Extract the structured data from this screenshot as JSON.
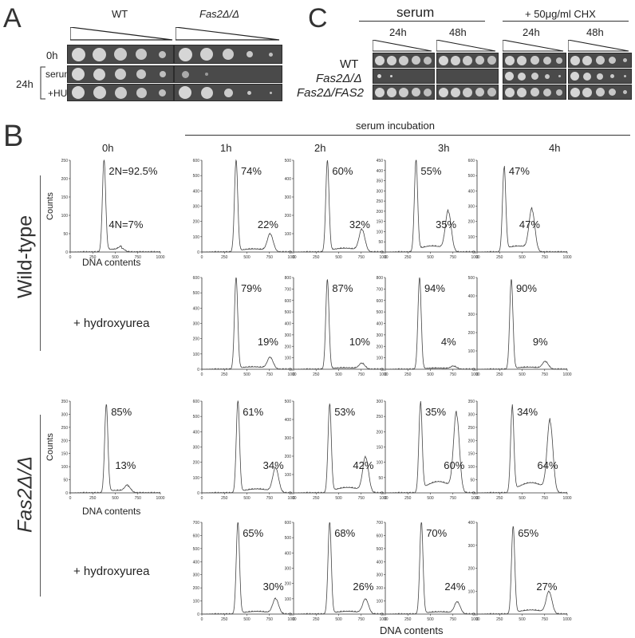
{
  "panelA": {
    "letter": "A",
    "header_wt": "WT",
    "header_mut": "Fas2Δ/Δ",
    "row_0h": "0h",
    "row_24h": "24h",
    "row_serum": "serum",
    "row_hu": "+HU"
  },
  "panelC": {
    "letter": "C",
    "header_serum": "serum",
    "header_chx": "+ 50μg/ml CHX",
    "time_24h_a": "24h",
    "time_48h_a": "48h",
    "time_24h_b": "24h",
    "time_48h_b": "48h",
    "strain_wt": "WT",
    "strain_mut": "Fas2Δ/Δ",
    "strain_rev": "Fas2Δ/FAS2"
  },
  "panelB": {
    "letter": "B",
    "serum_incubation": "serum incubation",
    "time_0h": "0h",
    "time_1h": "1h",
    "time_2h": "2h",
    "time_3h": "3h",
    "time_4h": "4h",
    "row_wt": "Wild-type",
    "row_mut": "Fas2Δ/Δ",
    "hu_label_1": "+ hydroxyurea",
    "hu_label_2": "+ hydroxyurea",
    "ylabel": "Counts",
    "xlabel_0h": "DNA contents",
    "xlabel_bottom": "DNA contents"
  },
  "chart_data": [
    {
      "type": "line",
      "id": "wt-0h",
      "xlim": [
        0,
        1000
      ],
      "ylim": [
        0,
        250
      ],
      "yticks": [
        0,
        50,
        100,
        150,
        200,
        250
      ],
      "xticks": [
        0,
        250,
        500,
        750,
        1000
      ],
      "peaks": [
        {
          "x": 375,
          "height": 250
        },
        {
          "x": 570,
          "height": 10
        }
      ],
      "labels": [
        "2N=92.5%",
        "4N=7%"
      ]
    },
    {
      "type": "line",
      "id": "wt-1h",
      "xlim": [
        0,
        1000
      ],
      "ylim": [
        0,
        600
      ],
      "yticks": [
        0,
        100,
        200,
        300,
        400,
        500,
        600
      ],
      "xticks": [
        0,
        250,
        500,
        750,
        1000
      ],
      "peaks": [
        {
          "x": 380,
          "height": 600
        },
        {
          "x": 760,
          "height": 115
        }
      ],
      "labels": [
        "74%",
        "22%"
      ]
    },
    {
      "type": "line",
      "id": "wt-2h",
      "xlim": [
        0,
        1000
      ],
      "ylim": [
        0,
        500
      ],
      "yticks": [
        0,
        100,
        200,
        300,
        400,
        500
      ],
      "xticks": [
        0,
        250,
        500,
        750,
        1000
      ],
      "peaks": [
        {
          "x": 375,
          "height": 495
        },
        {
          "x": 760,
          "height": 120
        }
      ],
      "labels": [
        "60%",
        "32%"
      ]
    },
    {
      "type": "line",
      "id": "wt-3h",
      "xlim": [
        0,
        1000
      ],
      "ylim": [
        0,
        450
      ],
      "yticks": [
        0,
        50,
        100,
        150,
        200,
        250,
        300,
        350,
        400,
        450
      ],
      "xticks": [
        0,
        250,
        500,
        750,
        1000
      ],
      "peaks": [
        {
          "x": 340,
          "height": 450
        },
        {
          "x": 700,
          "height": 195
        }
      ],
      "labels": [
        "55%",
        "35%"
      ]
    },
    {
      "type": "line",
      "id": "wt-4h",
      "xlim": [
        0,
        1000
      ],
      "ylim": [
        0,
        600
      ],
      "yticks": [
        0,
        100,
        200,
        300,
        400,
        500,
        600
      ],
      "xticks": [
        0,
        250,
        500,
        750,
        1000
      ],
      "peaks": [
        {
          "x": 300,
          "height": 550
        },
        {
          "x": 610,
          "height": 270
        }
      ],
      "labels": [
        "47%",
        "47%"
      ]
    },
    {
      "type": "line",
      "id": "wthu-1h",
      "xlim": [
        0,
        1000
      ],
      "ylim": [
        0,
        600
      ],
      "yticks": [
        0,
        100,
        200,
        300,
        400,
        500,
        600
      ],
      "xticks": [
        0,
        250,
        500,
        750,
        1000
      ],
      "peaks": [
        {
          "x": 380,
          "height": 600
        },
        {
          "x": 760,
          "height": 75
        }
      ],
      "labels": [
        "79%",
        "19%"
      ]
    },
    {
      "type": "line",
      "id": "wthu-2h",
      "xlim": [
        0,
        1000
      ],
      "ylim": [
        0,
        800
      ],
      "yticks": [
        0,
        100,
        200,
        300,
        400,
        500,
        600,
        700,
        800
      ],
      "xticks": [
        0,
        250,
        500,
        750,
        1000
      ],
      "peaks": [
        {
          "x": 375,
          "height": 780
        },
        {
          "x": 760,
          "height": 50
        }
      ],
      "labels": [
        "87%",
        "10%"
      ]
    },
    {
      "type": "line",
      "id": "wthu-3h",
      "xlim": [
        0,
        1000
      ],
      "ylim": [
        0,
        800
      ],
      "yticks": [
        0,
        100,
        200,
        300,
        400,
        500,
        600,
        700,
        800
      ],
      "xticks": [
        0,
        250,
        500,
        750,
        1000
      ],
      "peaks": [
        {
          "x": 380,
          "height": 800
        },
        {
          "x": 760,
          "height": 25
        }
      ],
      "labels": [
        "94%",
        "4%"
      ]
    },
    {
      "type": "line",
      "id": "wthu-4h",
      "xlim": [
        0,
        1000
      ],
      "ylim": [
        0,
        500
      ],
      "yticks": [
        0,
        100,
        200,
        300,
        400,
        500
      ],
      "xticks": [
        0,
        250,
        500,
        750,
        1000
      ],
      "peaks": [
        {
          "x": 380,
          "height": 490
        },
        {
          "x": 760,
          "height": 40
        }
      ],
      "labels": [
        "90%",
        "9%"
      ]
    },
    {
      "type": "line",
      "id": "mut-0h",
      "xlim": [
        0,
        1000
      ],
      "ylim": [
        0,
        350
      ],
      "yticks": [
        0,
        50,
        100,
        150,
        200,
        250,
        300,
        350
      ],
      "xticks": [
        0,
        250,
        500,
        750,
        1000
      ],
      "peaks": [
        {
          "x": 400,
          "height": 335
        },
        {
          "x": 640,
          "height": 25
        }
      ],
      "labels": [
        "85%",
        "13%"
      ]
    },
    {
      "type": "line",
      "id": "mut-1h",
      "xlim": [
        0,
        1000
      ],
      "ylim": [
        0,
        600
      ],
      "yticks": [
        0,
        100,
        200,
        300,
        400,
        500,
        600
      ],
      "xticks": [
        0,
        250,
        500,
        750,
        1000
      ],
      "peaks": [
        {
          "x": 400,
          "height": 600
        },
        {
          "x": 820,
          "height": 160
        }
      ],
      "labels": [
        "61%",
        "34%"
      ]
    },
    {
      "type": "line",
      "id": "mut-2h",
      "xlim": [
        0,
        1000
      ],
      "ylim": [
        0,
        500
      ],
      "yticks": [
        0,
        100,
        200,
        300,
        400,
        500
      ],
      "xticks": [
        0,
        250,
        500,
        750,
        1000
      ],
      "peaks": [
        {
          "x": 400,
          "height": 480
        },
        {
          "x": 800,
          "height": 190
        }
      ],
      "labels": [
        "53%",
        "42%"
      ]
    },
    {
      "type": "line",
      "id": "mut-3h",
      "xlim": [
        0,
        1000
      ],
      "ylim": [
        0,
        300
      ],
      "yticks": [
        0,
        50,
        100,
        150,
        200,
        250,
        300
      ],
      "xticks": [
        0,
        250,
        500,
        750,
        1000
      ],
      "peaks": [
        {
          "x": 390,
          "height": 290
        },
        {
          "x": 790,
          "height": 255
        }
      ],
      "labels": [
        "35%",
        "60%"
      ]
    },
    {
      "type": "line",
      "id": "mut-4h",
      "xlim": [
        0,
        1000
      ],
      "ylim": [
        0,
        350
      ],
      "yticks": [
        0,
        50,
        100,
        150,
        200,
        250,
        300,
        350
      ],
      "xticks": [
        0,
        250,
        500,
        750,
        1000
      ],
      "peaks": [
        {
          "x": 390,
          "height": 325
        },
        {
          "x": 810,
          "height": 270
        }
      ],
      "labels": [
        "34%",
        "64%"
      ]
    },
    {
      "type": "line",
      "id": "muthu-1h",
      "xlim": [
        0,
        1000
      ],
      "ylim": [
        0,
        700
      ],
      "yticks": [
        0,
        100,
        200,
        300,
        400,
        500,
        600,
        700
      ],
      "xticks": [
        0,
        250,
        500,
        750,
        1000
      ],
      "peaks": [
        {
          "x": 400,
          "height": 700
        },
        {
          "x": 820,
          "height": 115
        }
      ],
      "labels": [
        "65%",
        "30%"
      ]
    },
    {
      "type": "line",
      "id": "muthu-2h",
      "xlim": [
        0,
        1000
      ],
      "ylim": [
        0,
        600
      ],
      "yticks": [
        0,
        100,
        200,
        300,
        400,
        500,
        600
      ],
      "xticks": [
        0,
        250,
        500,
        750,
        1000
      ],
      "peaks": [
        {
          "x": 400,
          "height": 600
        },
        {
          "x": 800,
          "height": 95
        }
      ],
      "labels": [
        "68%",
        "26%"
      ]
    },
    {
      "type": "line",
      "id": "muthu-3h",
      "xlim": [
        0,
        1000
      ],
      "ylim": [
        0,
        700
      ],
      "yticks": [
        0,
        100,
        200,
        300,
        400,
        500,
        600,
        700
      ],
      "xticks": [
        0,
        250,
        500,
        750,
        1000
      ],
      "peaks": [
        {
          "x": 400,
          "height": 700
        },
        {
          "x": 800,
          "height": 90
        }
      ],
      "labels": [
        "70%",
        "24%"
      ]
    },
    {
      "type": "line",
      "id": "muthu-4h",
      "xlim": [
        0,
        1000
      ],
      "ylim": [
        0,
        400
      ],
      "yticks": [
        0,
        100,
        200,
        300,
        400
      ],
      "xticks": [
        0,
        250,
        500,
        750,
        1000
      ],
      "peaks": [
        {
          "x": 400,
          "height": 380
        },
        {
          "x": 800,
          "height": 95
        }
      ],
      "labels": [
        "65%",
        "27%"
      ]
    }
  ]
}
